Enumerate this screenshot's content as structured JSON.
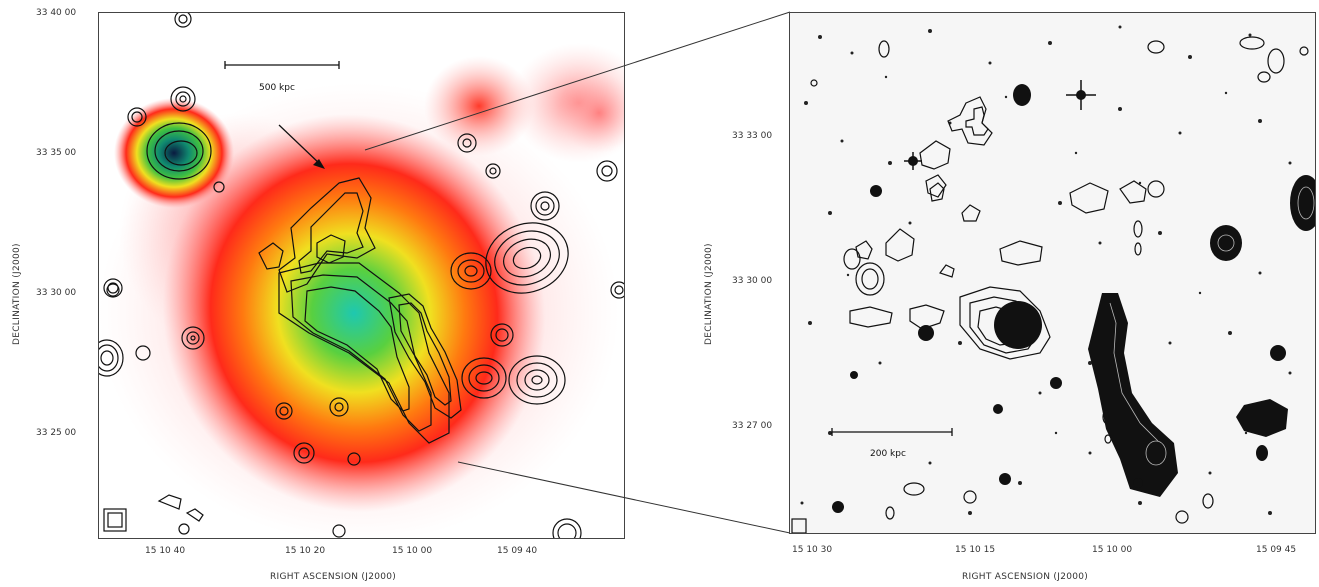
{
  "left_panel": {
    "scale_bar_label": "500 kpc",
    "y_axis_title": "DECLINATION (J2000)",
    "x_axis_title": "RIGHT ASCENSION (J2000)",
    "y_ticks": [
      "33 40 00",
      "33 35 00",
      "33 30 00",
      "33 25 00"
    ],
    "x_ticks": [
      "15 10 40",
      "15 10 20",
      "15 10 00",
      "15 09 40"
    ]
  },
  "right_panel": {
    "scale_bar_label": "200 kpc",
    "y_axis_title": "DECLINATION (J2000)",
    "x_axis_title": "RIGHT ASCENSION (J2000)",
    "y_ticks": [
      "33 33 00",
      "33 30 00",
      "33 27 00"
    ],
    "x_ticks": [
      "15 10 30",
      "15 10 15",
      "15 10 00",
      "15 09 45"
    ]
  },
  "colors": {
    "xray_low": "#ff9a9a",
    "xray_mid": "#ff2a1a",
    "xray_high": "#ffe020",
    "xray_peak": "#30c050",
    "contour": "#111111"
  }
}
